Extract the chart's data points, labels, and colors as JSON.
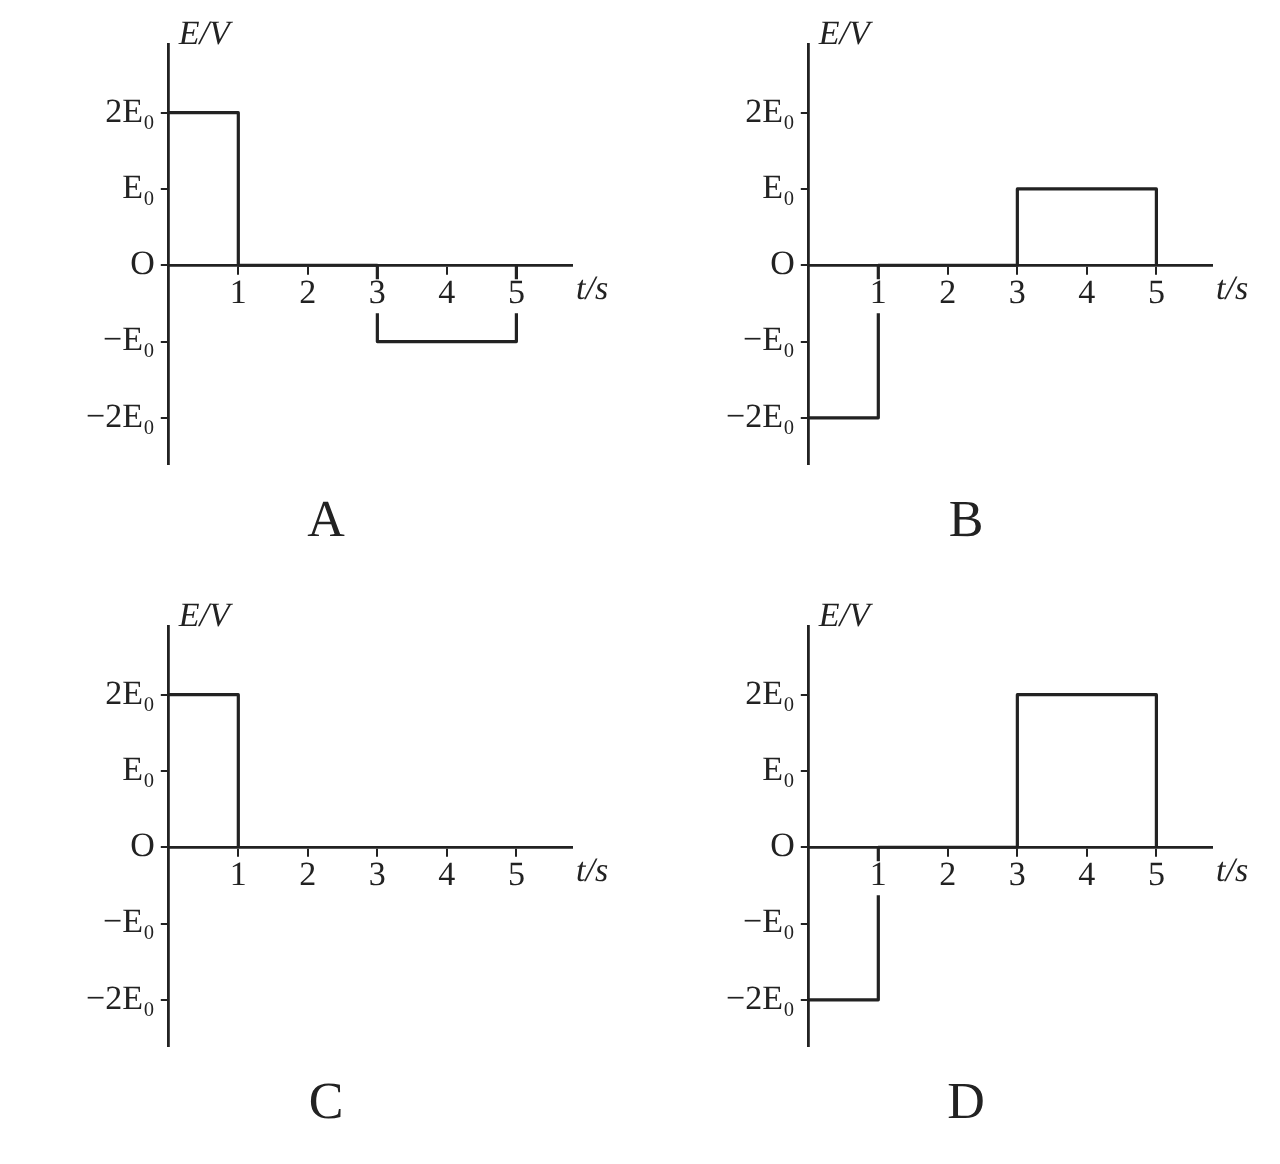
{
  "chart_data": [
    {
      "type": "step",
      "title": "A",
      "xlabel": "t/s",
      "ylabel": "E/V",
      "x": [
        0,
        1,
        3,
        5
      ],
      "values": [
        2,
        0,
        -1,
        0
      ],
      "color": "#222222",
      "marker": "none",
      "line_style": "solid",
      "legend": false,
      "grid": false,
      "xlim": [
        0,
        5.8
      ],
      "ylim": [
        -2.6,
        2.9
      ],
      "xticks": [
        1,
        2,
        3,
        4,
        5
      ],
      "yticks": [
        {
          "value": -2,
          "label": "−2E₀"
        },
        {
          "value": -1,
          "label": "−E₀"
        },
        {
          "value": 0,
          "label": "O"
        },
        {
          "value": 1,
          "label": "E₀"
        },
        {
          "value": 2,
          "label": "2E₀"
        }
      ]
    },
    {
      "type": "step",
      "title": "B",
      "xlabel": "t/s",
      "ylabel": "E/V",
      "x": [
        0,
        1,
        3,
        5
      ],
      "values": [
        -2,
        0,
        1,
        0
      ],
      "color": "#222222",
      "marker": "none",
      "line_style": "solid",
      "legend": false,
      "grid": false,
      "xlim": [
        0,
        5.8
      ],
      "ylim": [
        -2.6,
        2.9
      ],
      "xticks": [
        1,
        2,
        3,
        4,
        5
      ],
      "yticks": [
        {
          "value": -2,
          "label": "−2E₀"
        },
        {
          "value": -1,
          "label": "−E₀"
        },
        {
          "value": 0,
          "label": "O"
        },
        {
          "value": 1,
          "label": "E₀"
        },
        {
          "value": 2,
          "label": "2E₀"
        }
      ]
    },
    {
      "type": "step",
      "title": "C",
      "xlabel": "t/s",
      "ylabel": "E/V",
      "x": [
        0,
        1
      ],
      "values": [
        2,
        0
      ],
      "color": "#222222",
      "marker": "none",
      "line_style": "solid",
      "legend": false,
      "grid": false,
      "xlim": [
        0,
        5.8
      ],
      "ylim": [
        -2.6,
        2.9
      ],
      "xticks": [
        1,
        2,
        3,
        4,
        5
      ],
      "yticks": [
        {
          "value": -2,
          "label": "−2E₀"
        },
        {
          "value": -1,
          "label": "−E₀"
        },
        {
          "value": 0,
          "label": "O"
        },
        {
          "value": 1,
          "label": "E₀"
        },
        {
          "value": 2,
          "label": "2E₀"
        }
      ]
    },
    {
      "type": "step",
      "title": "D",
      "xlabel": "t/s",
      "ylabel": "E/V",
      "x": [
        0,
        1,
        3,
        5
      ],
      "values": [
        -2,
        0,
        2,
        0
      ],
      "color": "#222222",
      "marker": "none",
      "line_style": "solid",
      "legend": false,
      "grid": false,
      "xlim": [
        0,
        5.8
      ],
      "ylim": [
        -2.6,
        2.9
      ],
      "xticks": [
        1,
        2,
        3,
        4,
        5
      ],
      "yticks": [
        {
          "value": -2,
          "label": "−2E₀"
        },
        {
          "value": -1,
          "label": "−E₀"
        },
        {
          "value": 0,
          "label": "O"
        },
        {
          "value": 1,
          "label": "E₀"
        },
        {
          "value": 2,
          "label": "2E₀"
        }
      ]
    }
  ]
}
